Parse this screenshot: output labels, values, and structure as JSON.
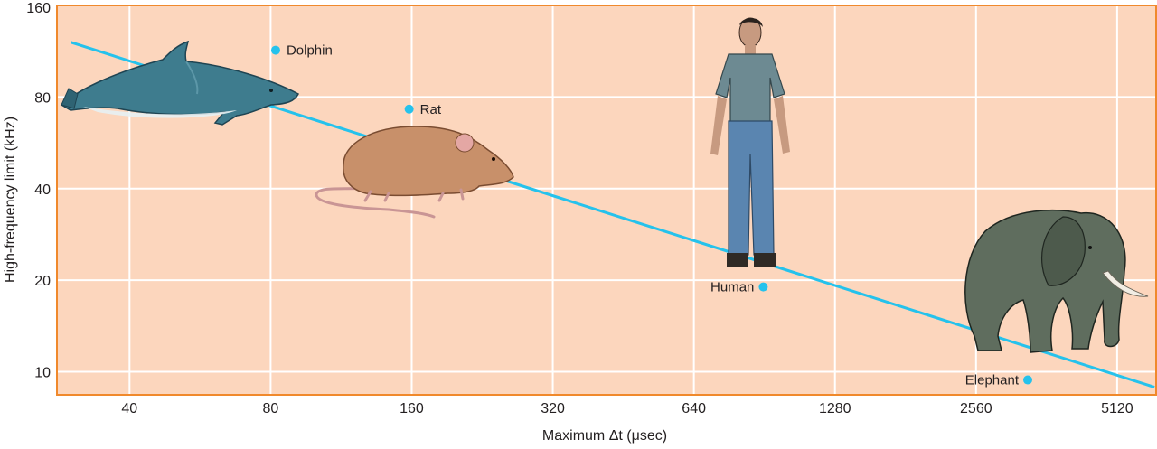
{
  "chart_data": {
    "type": "scatter",
    "title": "",
    "xlabel": "Maximum Δt (μsec)",
    "ylabel": "High-frequency limit (kHz)",
    "x_scale": "log2",
    "y_scale": "log2",
    "xlim": [
      28,
      6200
    ],
    "ylim": [
      8.4,
      160
    ],
    "x_ticks": [
      40,
      80,
      160,
      320,
      640,
      1280,
      2560,
      5120
    ],
    "y_ticks": [
      10,
      20,
      40,
      80,
      160
    ],
    "grid": true,
    "legend": "none",
    "points": [
      {
        "label": "Dolphin",
        "x": 82,
        "y": 114,
        "animal_icon": "dolphin-icon"
      },
      {
        "label": "Rat",
        "x": 158,
        "y": 73,
        "animal_icon": "rat-icon"
      },
      {
        "label": "Human",
        "x": 900,
        "y": 19,
        "animal_icon": "human-icon"
      },
      {
        "label": "Elephant",
        "x": 3300,
        "y": 9.4,
        "animal_icon": "elephant-icon"
      }
    ],
    "trend_line": {
      "x": [
        30,
        6150
      ],
      "y": [
        121,
        8.9
      ]
    }
  },
  "colors": {
    "plot_background": "#fcd6bd",
    "frame": "#f0892c",
    "grid": "#ffffff",
    "points": "#25c2ec",
    "trend_line": "#25c2ec"
  }
}
